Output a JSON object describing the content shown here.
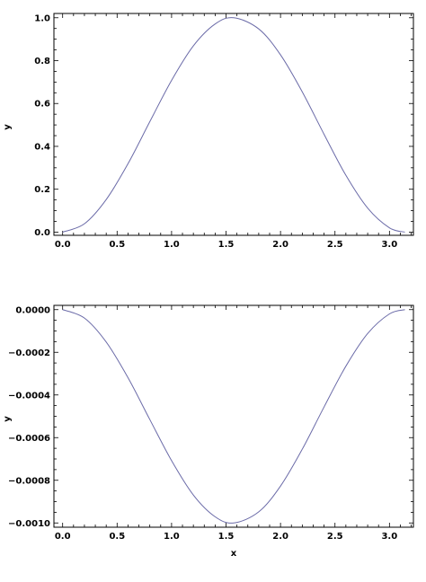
{
  "chart_data": [
    {
      "type": "line",
      "title": "",
      "xlabel": "",
      "ylabel": "y",
      "xlim": [
        -0.08,
        3.22
      ],
      "ylim": [
        -0.015,
        1.02
      ],
      "xticks": [
        "0.0",
        "0.5",
        "1.0",
        "1.5",
        "2.0",
        "2.5",
        "3.0"
      ],
      "yticks": [
        "0.0",
        "0.2",
        "0.4",
        "0.6",
        "0.8",
        "1.0"
      ],
      "grid": false,
      "series": [
        {
          "color": "#6b6ba8",
          "x": [
            0,
            0.2,
            0.4,
            0.6,
            0.8,
            1.0,
            1.2,
            1.4,
            1.5708,
            1.8,
            2.0,
            2.2,
            2.4,
            2.6,
            2.8,
            3.0,
            3.1416
          ],
          "y": [
            0,
            0.039,
            0.152,
            0.319,
            0.515,
            0.708,
            0.869,
            0.971,
            1.0,
            0.948,
            0.827,
            0.654,
            0.456,
            0.265,
            0.112,
            0.02,
            0
          ]
        }
      ]
    },
    {
      "type": "line",
      "title": "",
      "xlabel": "x",
      "ylabel": "y",
      "xlim": [
        -0.08,
        3.22
      ],
      "ylim": [
        -0.00102,
        2e-05
      ],
      "xticks": [
        "0.0",
        "0.5",
        "1.0",
        "1.5",
        "2.0",
        "2.5",
        "3.0"
      ],
      "yticks": [
        "0.0000",
        "−0.0002",
        "−0.0004",
        "−0.0006",
        "−0.0008",
        "−0.0010"
      ],
      "grid": false,
      "series": [
        {
          "color": "#6b6ba8",
          "x": [
            0,
            0.2,
            0.4,
            0.6,
            0.8,
            1.0,
            1.2,
            1.4,
            1.5708,
            1.8,
            2.0,
            2.2,
            2.4,
            2.6,
            2.8,
            3.0,
            3.1416
          ],
          "y": [
            0,
            -3.95e-05,
            -0.000152,
            -0.000319,
            -0.000515,
            -0.000708,
            -0.000869,
            -0.000971,
            -0.001,
            -0.000948,
            -0.000827,
            -0.000654,
            -0.000456,
            -0.000265,
            -0.000112,
            -2e-05,
            0
          ]
        }
      ]
    }
  ]
}
